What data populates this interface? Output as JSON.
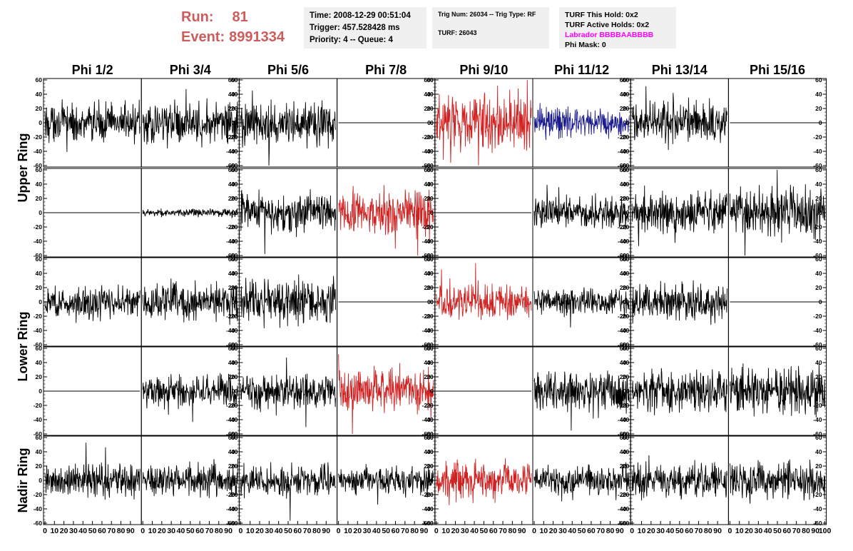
{
  "header": {
    "run_label": "Run:",
    "run_value": "81",
    "event_label": "Event:",
    "event_value": "8991334",
    "time": "Time: 2008-12-29 00:51:04",
    "trigger": "Trigger: 457.528428 ms",
    "priority": "Priority: 4 -- Queue: 4",
    "trig_num": "Trig Num: 26034 -- Trig Type: RF",
    "turf": "TURF: 26043",
    "turf_hold": "TURF This Hold: 0x2",
    "turf_active": "TURF Active Holds: 0x2",
    "labrador": "Labrador BBBBAABBBB",
    "phi_mask": "Phi Mask: 0"
  },
  "colors": {
    "trace": "#000000",
    "triggered": "#d02020",
    "highlight": "#1a1a8c",
    "run_text": "#cd5c5c",
    "labrador_text": "#ff00ff",
    "info_bg": "#f0f0f0"
  },
  "chart_data": {
    "type": "line",
    "description_grid": "5 rows x 8 columns of waveform panels",
    "columns": [
      "Phi 1/2",
      "Phi 3/4",
      "Phi 5/6",
      "Phi 7/8",
      "Phi 9/10",
      "Phi 11/12",
      "Phi 13/14",
      "Phi 15/16"
    ],
    "row_labels": [
      {
        "text": "Upper Ring",
        "rows": [
          0,
          1
        ]
      },
      {
        "text": "Lower Ring",
        "rows": [
          2,
          3
        ]
      },
      {
        "text": "Nadir Ring",
        "rows": [
          4
        ]
      }
    ],
    "ylim": [
      -62,
      62
    ],
    "yticks": [
      -60,
      -40,
      -20,
      0,
      20,
      40,
      60
    ],
    "xlim": [
      0,
      100
    ],
    "xticks": [
      0,
      10,
      20,
      30,
      40,
      50,
      60,
      70,
      80,
      90,
      100
    ],
    "panels": [
      [
        {
          "amp": 14,
          "color": "trace"
        },
        {
          "amp": 15,
          "color": "trace"
        },
        {
          "amp": 16,
          "color": "trace"
        },
        {
          "amp": 0,
          "color": "trace"
        },
        {
          "amp": 22,
          "color": "triggered"
        },
        {
          "amp": 11,
          "color": "highlight"
        },
        {
          "amp": 16,
          "color": "trace"
        },
        {
          "amp": 0,
          "color": "trace"
        }
      ],
      [
        {
          "amp": 0,
          "color": "trace"
        },
        {
          "amp": 3,
          "color": "trace"
        },
        {
          "amp": 15,
          "color": "trace"
        },
        {
          "amp": 17,
          "color": "triggered"
        },
        {
          "amp": 0,
          "color": "trace"
        },
        {
          "amp": 12,
          "color": "trace"
        },
        {
          "amp": 15,
          "color": "trace"
        },
        {
          "amp": 18,
          "color": "trace"
        }
      ],
      [
        {
          "amp": 12,
          "color": "trace"
        },
        {
          "amp": 14,
          "color": "trace"
        },
        {
          "amp": 16,
          "color": "trace"
        },
        {
          "amp": 0,
          "color": "trace"
        },
        {
          "amp": 13,
          "color": "triggered"
        },
        {
          "amp": 10,
          "color": "trace"
        },
        {
          "amp": 14,
          "color": "trace"
        },
        {
          "amp": 0,
          "color": "trace"
        }
      ],
      [
        {
          "amp": 0,
          "color": "trace"
        },
        {
          "amp": 12,
          "color": "trace"
        },
        {
          "amp": 13,
          "color": "trace"
        },
        {
          "amp": 16,
          "color": "triggered"
        },
        {
          "amp": 0,
          "color": "trace"
        },
        {
          "amp": 14,
          "color": "trace"
        },
        {
          "amp": 15,
          "color": "trace"
        },
        {
          "amp": 17,
          "color": "trace"
        }
      ],
      [
        {
          "amp": 13,
          "color": "trace"
        },
        {
          "amp": 12,
          "color": "trace"
        },
        {
          "amp": 11,
          "color": "trace"
        },
        {
          "amp": 10,
          "color": "trace"
        },
        {
          "amp": 13,
          "color": "triggered"
        },
        {
          "amp": 11,
          "color": "trace"
        },
        {
          "amp": 13,
          "color": "trace"
        },
        {
          "amp": 14,
          "color": "trace"
        }
      ]
    ]
  }
}
